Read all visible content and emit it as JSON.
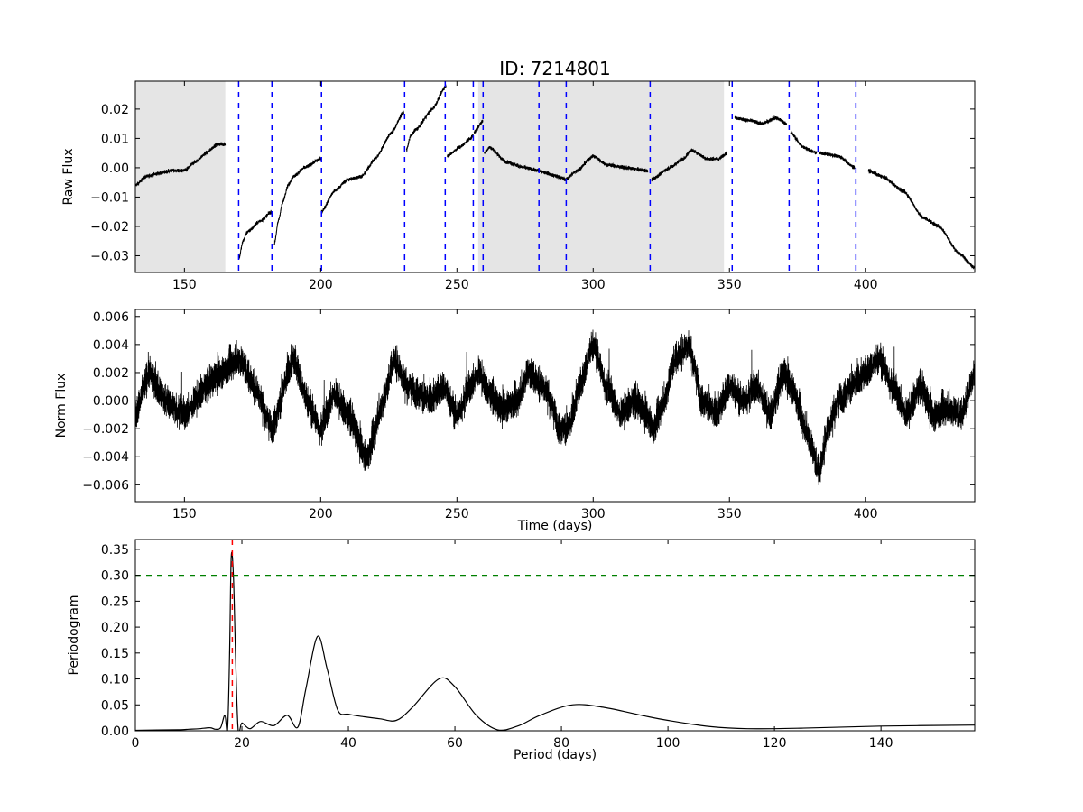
{
  "chart_data": [
    {
      "type": "line",
      "title": "ID: 7214801",
      "xlabel": "",
      "ylabel": "Raw Flux",
      "xlim": [
        132,
        440
      ],
      "ylim": [
        -0.0357,
        0.0295
      ],
      "xticks": [
        150,
        200,
        250,
        300,
        350,
        400
      ],
      "yticks": [
        0.02,
        0.01,
        0.0,
        -0.01,
        -0.02,
        -0.03
      ],
      "ytick_labels": [
        "0.02",
        "0.01",
        "0.00",
        "−0.01",
        "−0.02",
        "−0.03"
      ],
      "shaded_regions": [
        [
          132,
          165
        ],
        [
          257.8,
          348
        ]
      ],
      "shade_color": "#e5e5e5",
      "vlines": [
        169.9,
        182.1,
        200.3,
        230.8,
        245.7,
        256,
        259.6,
        280.1,
        290.1,
        320.9,
        351,
        371.9,
        382.5,
        396.4
      ],
      "vline_color": "#0000ff",
      "noise": 0.0006,
      "segments": [
        [
          [
            132,
            -0.006
          ],
          [
            136,
            -0.003
          ],
          [
            140,
            -0.002
          ],
          [
            145,
            -0.001
          ],
          [
            150,
            -0.001
          ],
          [
            154,
            0.002
          ],
          [
            158,
            0.005
          ],
          [
            162,
            0.008
          ],
          [
            165,
            0.008
          ]
        ],
        [
          [
            170,
            -0.031
          ],
          [
            171.5,
            -0.025
          ],
          [
            173,
            -0.022
          ],
          [
            178,
            -0.018
          ],
          [
            182,
            -0.015
          ]
        ],
        [
          [
            183,
            -0.026
          ],
          [
            184.5,
            -0.018
          ],
          [
            186,
            -0.012
          ],
          [
            188,
            -0.006
          ],
          [
            190,
            -0.003
          ],
          [
            194,
            0.0
          ],
          [
            200,
            0.003
          ]
        ],
        [
          [
            200.3,
            -0.015
          ],
          [
            205,
            -0.008
          ],
          [
            210,
            -0.004
          ],
          [
            215,
            -0.003
          ],
          [
            220,
            0.003
          ],
          [
            226,
            0.012
          ],
          [
            230.5,
            0.019
          ]
        ],
        [
          [
            231.5,
            0.006
          ],
          [
            233,
            0.011
          ],
          [
            235,
            0.013
          ],
          [
            241,
            0.02
          ],
          [
            246,
            0.028
          ]
        ],
        [
          [
            246.5,
            0.004
          ],
          [
            251,
            0.007
          ],
          [
            255,
            0.01
          ],
          [
            256,
            0.011
          ]
        ],
        [
          [
            256.3,
            0.012
          ],
          [
            259.5,
            0.016
          ]
        ],
        [
          [
            260,
            0.005
          ],
          [
            262,
            0.007
          ],
          [
            268,
            0.002
          ],
          [
            275,
            0.0
          ],
          [
            280,
            -0.001
          ],
          [
            287,
            -0.003
          ],
          [
            290,
            -0.004
          ],
          [
            294,
            -0.001
          ],
          [
            300,
            0.004
          ],
          [
            305,
            0.001
          ],
          [
            312,
            0.0
          ],
          [
            320,
            -0.001
          ]
        ],
        [
          [
            321.5,
            -0.004
          ],
          [
            328,
            0.0
          ],
          [
            333,
            0.003
          ],
          [
            336,
            0.006
          ],
          [
            342,
            0.003
          ],
          [
            346,
            0.003
          ],
          [
            349,
            0.005
          ]
        ],
        [
          [
            352,
            0.017
          ],
          [
            358,
            0.016
          ],
          [
            362,
            0.015
          ],
          [
            367,
            0.017
          ],
          [
            371,
            0.015
          ]
        ],
        [
          [
            372.5,
            0.012
          ],
          [
            377,
            0.007
          ],
          [
            382,
            0.005
          ]
        ],
        [
          [
            383,
            0.005
          ],
          [
            390,
            0.004
          ],
          [
            396,
            0.0
          ]
        ],
        [
          [
            401,
            -0.001
          ],
          [
            406,
            -0.003
          ],
          [
            414,
            -0.008
          ],
          [
            421,
            -0.017
          ],
          [
            427,
            -0.02
          ],
          [
            434,
            -0.029
          ],
          [
            440,
            -0.034
          ]
        ]
      ]
    },
    {
      "type": "line",
      "title": "",
      "xlabel": "Time (days)",
      "ylabel": "Norm Flux",
      "xlim": [
        132,
        440
      ],
      "ylim": [
        -0.0072,
        0.0065
      ],
      "xticks": [
        150,
        200,
        250,
        300,
        350,
        400
      ],
      "yticks": [
        0.006,
        0.004,
        0.002,
        0.0,
        -0.002,
        -0.004,
        -0.006
      ],
      "ytick_labels": [
        "0.006",
        "0.004",
        "0.002",
        "0.000",
        "−0.002",
        "−0.004",
        "−0.006"
      ],
      "noise": 0.0011,
      "trend": [
        [
          132,
          -0.001
        ],
        [
          137,
          0.002
        ],
        [
          143,
          0.0
        ],
        [
          150,
          -0.001
        ],
        [
          158,
          0.001
        ],
        [
          163,
          0.002
        ],
        [
          170,
          0.003
        ],
        [
          176,
          0.001
        ],
        [
          182,
          -0.002
        ],
        [
          190,
          0.003
        ],
        [
          195,
          0.0
        ],
        [
          200,
          -0.002
        ],
        [
          205,
          0.0005
        ],
        [
          210,
          -0.001
        ],
        [
          217,
          -0.004
        ],
        [
          223,
          0.0
        ],
        [
          227,
          0.003
        ],
        [
          232,
          0.001
        ],
        [
          240,
          0.0
        ],
        [
          245,
          0.001
        ],
        [
          250,
          -0.001
        ],
        [
          255,
          0.001
        ],
        [
          258,
          0.002
        ],
        [
          262,
          0.0005
        ],
        [
          266,
          -0.0005
        ],
        [
          272,
          0.0
        ],
        [
          276,
          0.002
        ],
        [
          282,
          0.001
        ],
        [
          288,
          -0.002
        ],
        [
          291,
          -0.002
        ],
        [
          295,
          0.001
        ],
        [
          300,
          0.004
        ],
        [
          305,
          0.001
        ],
        [
          310,
          -0.001
        ],
        [
          315,
          0.0
        ],
        [
          320,
          -0.001
        ],
        [
          322,
          -0.002
        ],
        [
          326,
          0.0
        ],
        [
          330,
          0.003
        ],
        [
          335,
          0.004
        ],
        [
          340,
          0.0
        ],
        [
          345,
          -0.001
        ],
        [
          350,
          0.001
        ],
        [
          355,
          0.0
        ],
        [
          360,
          0.001
        ],
        [
          365,
          -0.001
        ],
        [
          370,
          0.002
        ],
        [
          373,
          0.001
        ],
        [
          378,
          -0.002
        ],
        [
          383,
          -0.005
        ],
        [
          386,
          -0.002
        ],
        [
          390,
          0.0
        ],
        [
          395,
          0.001
        ],
        [
          400,
          0.002
        ],
        [
          405,
          0.003
        ],
        [
          410,
          0.001
        ],
        [
          415,
          -0.001
        ],
        [
          420,
          0.001
        ],
        [
          425,
          -0.001
        ],
        [
          430,
          -0.0005
        ],
        [
          435,
          -0.001
        ],
        [
          440,
          0.002
        ]
      ]
    },
    {
      "type": "line",
      "title": "",
      "xlabel": "Period (days)",
      "ylabel": "Periodogram",
      "xlim": [
        0,
        157.6
      ],
      "ylim": [
        0,
        0.369
      ],
      "xticks": [
        0,
        20,
        40,
        60,
        80,
        100,
        120,
        140
      ],
      "yticks": [
        0.0,
        0.05,
        0.1,
        0.15,
        0.2,
        0.25,
        0.3,
        0.35
      ],
      "ytick_labels": [
        "0.00",
        "0.05",
        "0.10",
        "0.15",
        "0.20",
        "0.25",
        "0.30",
        "0.35"
      ],
      "hline": 0.3,
      "hline_color": "#008000",
      "vline": 18.2,
      "vline_color": "#ff0000",
      "points": [
        [
          0,
          0.001
        ],
        [
          8,
          0.002
        ],
        [
          10,
          0.003
        ],
        [
          12,
          0.004
        ],
        [
          14,
          0.006
        ],
        [
          15,
          0.003
        ],
        [
          16,
          0.006
        ],
        [
          16.8,
          0.03
        ],
        [
          17.3,
          0.002
        ],
        [
          17.7,
          0.15
        ],
        [
          18,
          0.335
        ],
        [
          18.4,
          0.3
        ],
        [
          18.8,
          0.15
        ],
        [
          19.3,
          0.002
        ],
        [
          20,
          0.015
        ],
        [
          21.5,
          0.004
        ],
        [
          23.5,
          0.018
        ],
        [
          26,
          0.01
        ],
        [
          28.5,
          0.03
        ],
        [
          30.5,
          0.007
        ],
        [
          32,
          0.08
        ],
        [
          34.2,
          0.182
        ],
        [
          36,
          0.12
        ],
        [
          38,
          0.04
        ],
        [
          40,
          0.032
        ],
        [
          43,
          0.027
        ],
        [
          46,
          0.023
        ],
        [
          49,
          0.02
        ],
        [
          52,
          0.045
        ],
        [
          57,
          0.1
        ],
        [
          60,
          0.085
        ],
        [
          64,
          0.03
        ],
        [
          68,
          0.002
        ],
        [
          72,
          0.01
        ],
        [
          76,
          0.03
        ],
        [
          82,
          0.05
        ],
        [
          88,
          0.045
        ],
        [
          95,
          0.03
        ],
        [
          100,
          0.02
        ],
        [
          108,
          0.008
        ],
        [
          115,
          0.004
        ],
        [
          125,
          0.005
        ],
        [
          140,
          0.009
        ],
        [
          157.6,
          0.011
        ]
      ]
    }
  ]
}
